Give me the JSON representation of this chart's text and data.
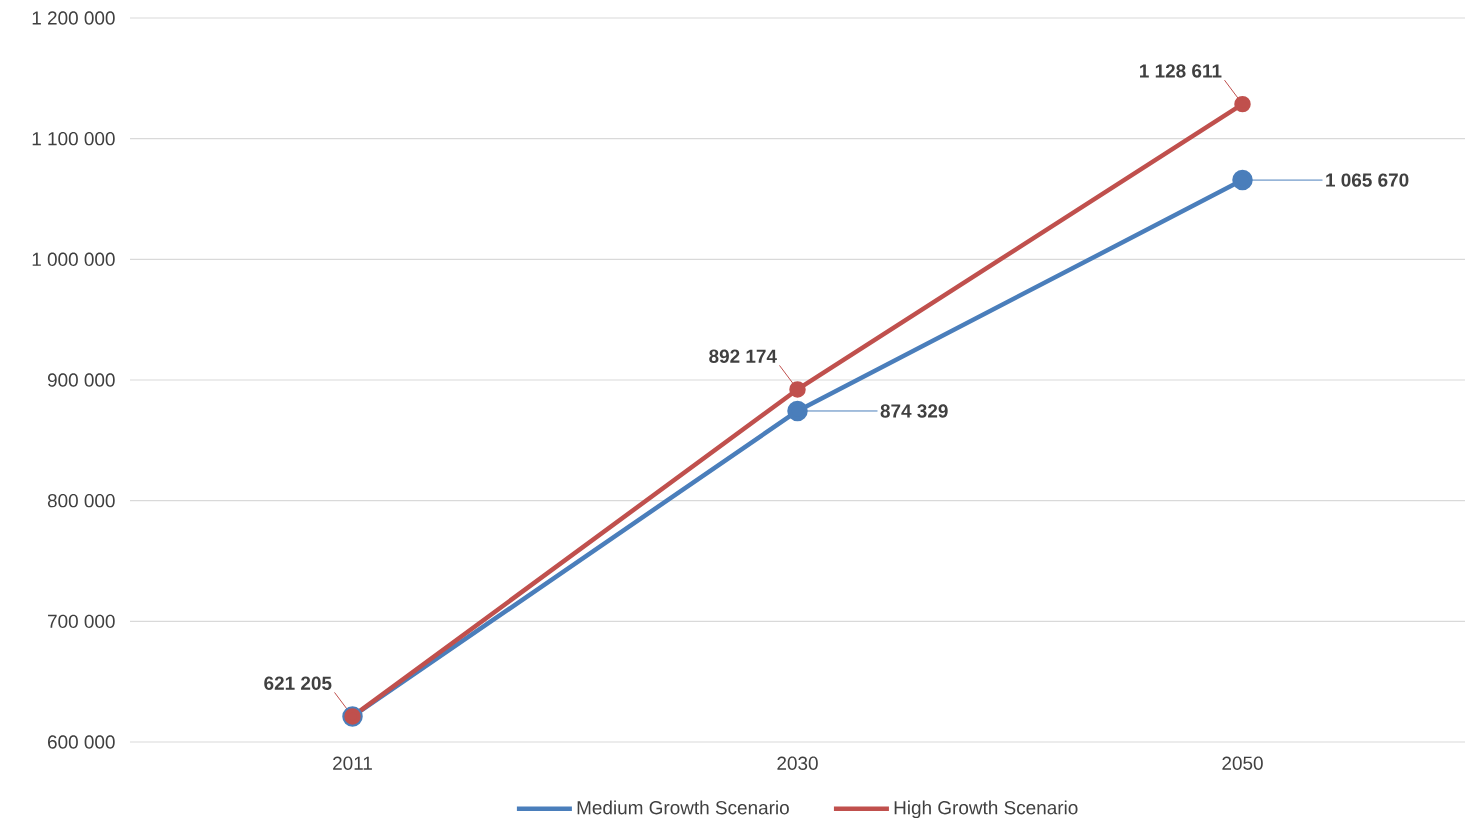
{
  "chart_data": {
    "type": "line",
    "categories": [
      "2011",
      "2030",
      "2050"
    ],
    "series": [
      {
        "name": "Medium Growth Scenario",
        "color": "#4a7ebb",
        "values": [
          621205,
          874329,
          1065670
        ],
        "value_labels": [
          null,
          "874 329",
          "1 065 670"
        ]
      },
      {
        "name": "High Growth Scenario",
        "color": "#c0504d",
        "values": [
          621205,
          892174,
          1128611
        ],
        "value_labels": [
          "621 205",
          "892 174",
          "1 128 611"
        ]
      }
    ],
    "ylim": [
      600000,
      1200000
    ],
    "yticks": [
      {
        "value": 600000,
        "label": "600 000"
      },
      {
        "value": 700000,
        "label": "700 000"
      },
      {
        "value": 800000,
        "label": "800 000"
      },
      {
        "value": 900000,
        "label": "900 000"
      },
      {
        "value": 1000000,
        "label": "1 000 000"
      },
      {
        "value": 1100000,
        "label": "1 100 000"
      },
      {
        "value": 1200000,
        "label": "1 200 000"
      }
    ],
    "grid": "y",
    "legend": "bottom",
    "marker": "circle",
    "line_style": "solid"
  }
}
